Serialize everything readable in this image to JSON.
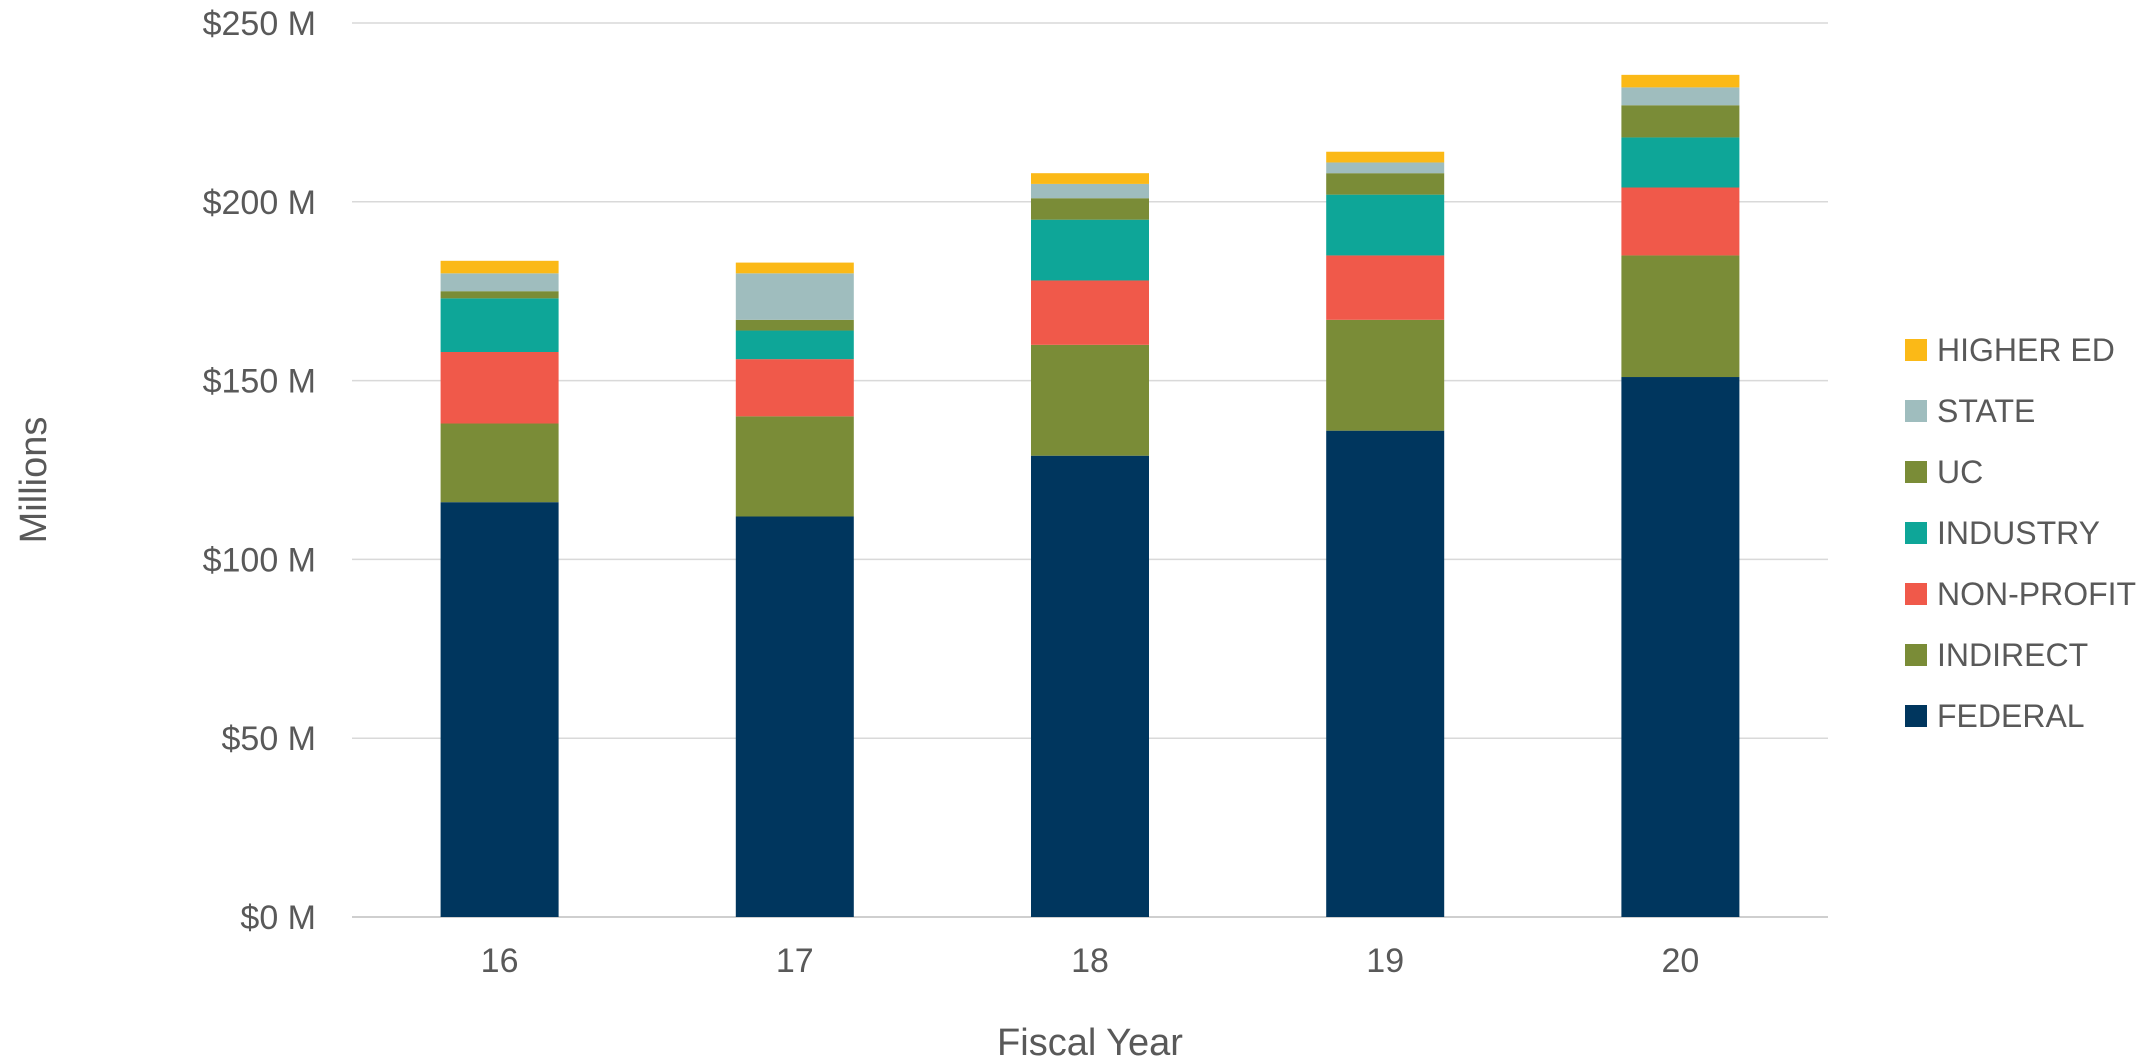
{
  "chart_data": {
    "type": "bar",
    "stacked": true,
    "title": "",
    "xlabel": "Fiscal Year",
    "ylabel": "Millions",
    "ylim": [
      0,
      250
    ],
    "y_ticks": [
      0,
      50,
      100,
      150,
      200,
      250
    ],
    "y_tick_labels": [
      "$0 M",
      "$50 M",
      "$100 M",
      "$150 M",
      "$200 M",
      "$250 M"
    ],
    "grid": true,
    "legend_position": "right",
    "categories": [
      "16",
      "17",
      "18",
      "19",
      "20"
    ],
    "series": [
      {
        "name": "FEDERAL",
        "color": "#00365e",
        "values": [
          116,
          112,
          129,
          136,
          151
        ]
      },
      {
        "name": "INDIRECT",
        "color": "#7a8c37",
        "values": [
          22,
          28,
          31,
          31,
          34
        ]
      },
      {
        "name": "NON-PROFIT",
        "color": "#f0594a",
        "values": [
          20,
          16,
          18,
          18,
          19
        ]
      },
      {
        "name": "INDUSTRY",
        "color": "#0ea698",
        "values": [
          15,
          8,
          17,
          17,
          14
        ]
      },
      {
        "name": "UC",
        "color": "#7a8c37",
        "values": [
          2,
          3,
          6,
          6,
          9
        ]
      },
      {
        "name": "STATE",
        "color": "#9fbdbe",
        "values": [
          5,
          13,
          4,
          3,
          5
        ]
      },
      {
        "name": "HIGHER ED",
        "color": "#fbb917",
        "values": [
          3.5,
          3,
          3,
          3,
          3.5
        ]
      }
    ]
  }
}
